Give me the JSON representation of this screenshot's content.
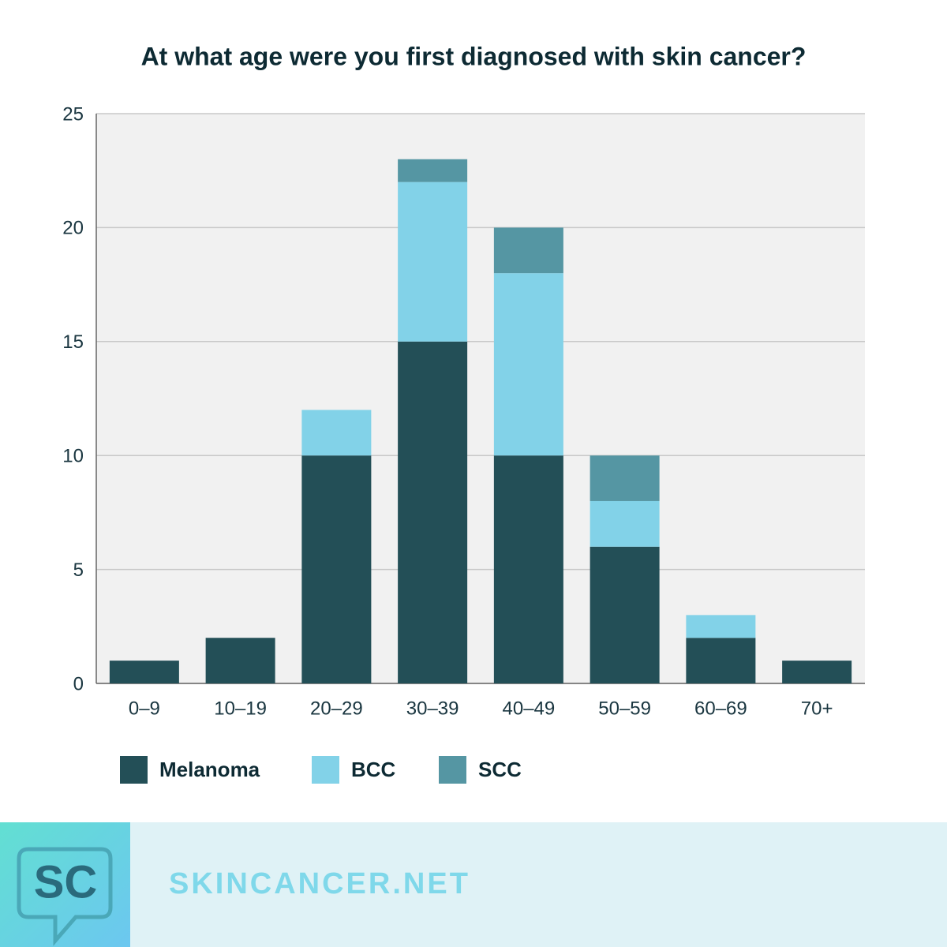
{
  "chart_data": {
    "type": "bar",
    "stacked": true,
    "title": "At what age were you first diagnosed with skin cancer?",
    "categories": [
      "0–9",
      "10–19",
      "20–29",
      "30–39",
      "40–49",
      "50–59",
      "60–69",
      "70+"
    ],
    "series": [
      {
        "name": "Melanoma",
        "color": "#234f57",
        "values": [
          1,
          2,
          10,
          15,
          10,
          6,
          2,
          1
        ]
      },
      {
        "name": "BCC",
        "color": "#82d2e8",
        "values": [
          0,
          0,
          2,
          7,
          8,
          2,
          1,
          0
        ]
      },
      {
        "name": "SCC",
        "color": "#5596a3",
        "values": [
          0,
          0,
          0,
          1,
          2,
          2,
          0,
          0
        ]
      }
    ],
    "ylim": [
      0,
      25
    ],
    "yticks": [
      0,
      5,
      10,
      15,
      20,
      25
    ],
    "grid": true,
    "legend": "bottom"
  },
  "footer": {
    "logo": "SC",
    "site": "SKINCANCER.NET"
  }
}
